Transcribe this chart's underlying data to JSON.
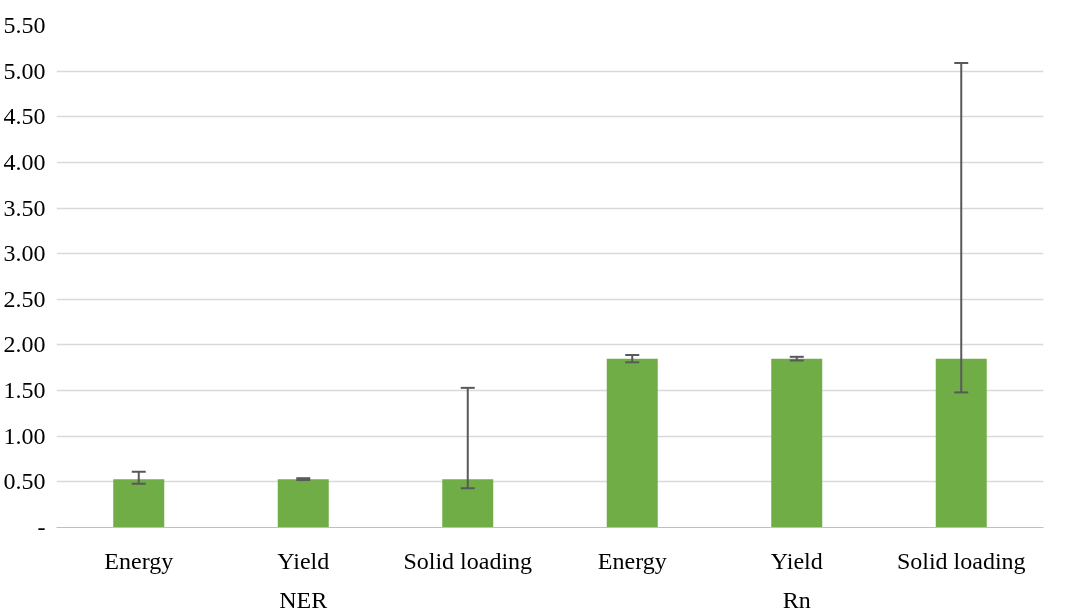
{
  "chart_data": {
    "type": "bar",
    "categories": [
      "Energy",
      "Yield",
      "Solid loading",
      "Energy",
      "Yield",
      "Solid loading"
    ],
    "annotations": [
      "NER",
      "Rn"
    ],
    "values": [
      0.53,
      0.53,
      0.53,
      1.85,
      1.85,
      1.85
    ],
    "errors": [
      [
        0.48,
        0.61
      ],
      [
        0.52,
        0.54
      ],
      [
        0.43,
        1.53
      ],
      [
        1.81,
        1.89
      ],
      [
        1.83,
        1.87
      ],
      [
        1.48,
        5.09
      ]
    ],
    "color": "#70ad47",
    "ylim": [
      0,
      5.5
    ],
    "yticks": [
      {
        "value": 0,
        "label": "-"
      },
      {
        "value": 0.5,
        "label": "0.50"
      },
      {
        "value": 1,
        "label": "1.00"
      },
      {
        "value": 1.5,
        "label": "1.50"
      },
      {
        "value": 2,
        "label": "2.00"
      },
      {
        "value": 2.5,
        "label": "2.50"
      },
      {
        "value": 3,
        "label": "3.00"
      },
      {
        "value": 3.5,
        "label": "3.50"
      },
      {
        "value": 4,
        "label": "4.00"
      },
      {
        "value": 4.5,
        "label": "4.50"
      },
      {
        "value": 5,
        "label": "5.00"
      },
      {
        "value": 5.5,
        "label": "5.50"
      }
    ],
    "grid": "y"
  }
}
